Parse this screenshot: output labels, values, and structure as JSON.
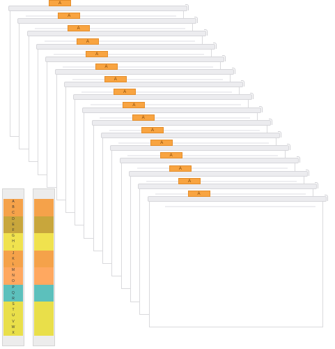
{
  "folders": [
    {
      "tab_label": "A"
    },
    {
      "tab_label": "A"
    },
    {
      "tab_label": "A"
    },
    {
      "tab_label": "A"
    },
    {
      "tab_label": "A"
    },
    {
      "tab_label": "A"
    },
    {
      "tab_label": "A"
    },
    {
      "tab_label": "A"
    },
    {
      "tab_label": "A"
    },
    {
      "tab_label": "A"
    },
    {
      "tab_label": "A"
    },
    {
      "tab_label": "A"
    },
    {
      "tab_label": "A"
    },
    {
      "tab_label": "A"
    },
    {
      "tab_label": "A"
    },
    {
      "tab_label": "A"
    }
  ],
  "label_strips": {
    "letters": [
      "A",
      "B",
      "C",
      "D",
      "E",
      "F",
      "G",
      "H",
      "I",
      "J",
      "K",
      "L",
      "M",
      "N",
      "O",
      "P",
      "Q",
      "R",
      "S",
      "T",
      "U",
      "V",
      "W",
      "X"
    ],
    "groups": [
      {
        "count": 3,
        "color": "#f5a24a"
      },
      {
        "count": 3,
        "color": "#c8a63c"
      },
      {
        "count": 3,
        "color": "#f0e24e"
      },
      {
        "count": 3,
        "color": "#f5a24a"
      },
      {
        "count": 3,
        "color": "#ffa860"
      },
      {
        "count": 3,
        "color": "#5cc0bc"
      },
      {
        "count": 3,
        "color": "#e9df4a"
      },
      {
        "count": 3,
        "color": "#e9df4a"
      }
    ]
  },
  "colors": {
    "tab_fill": "#f8a441",
    "folder_border": "#d9d9dc"
  }
}
